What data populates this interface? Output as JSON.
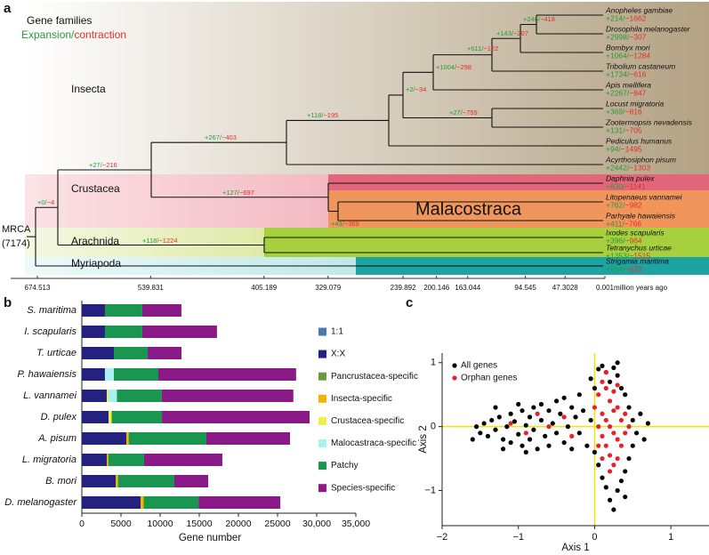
{
  "panel_labels": [
    "a",
    "b",
    "c"
  ],
  "tree": {
    "header": "Gene families",
    "expansion": "Expansion/",
    "contraction": "contraction",
    "clades": [
      {
        "name": "Insecta",
        "color": "#8b5a2b"
      },
      {
        "name": "Crustacea",
        "color": "#d0303a"
      },
      {
        "name": "Arachnida",
        "color": "#e8961e"
      },
      {
        "name": "Myriapoda",
        "color": "#2a3a9a"
      }
    ],
    "root": "MRCA",
    "root_count": "(7174)",
    "highlight": "Malacostraca",
    "gain_color": "#2a9a3a",
    "loss_color": "#e0302a",
    "leaves": [
      {
        "name": "Anopheles gambiae",
        "gain": "+214/",
        "loss": "−1662"
      },
      {
        "name": "Drosophila melanogaster",
        "gain": "+2998/",
        "loss": "−307"
      },
      {
        "name": "Bombyx mori",
        "gain": "+1064/",
        "loss": "−1284"
      },
      {
        "name": "Tribolium castaneum",
        "gain": "+1734/",
        "loss": "−616"
      },
      {
        "name": "Apis mellifera",
        "gain": "+2267/",
        "loss": "−847"
      },
      {
        "name": "Locust migratoria",
        "gain": "+369/",
        "loss": "−816"
      },
      {
        "name": "Zootermopsis nevadensis",
        "gain": "+131/",
        "loss": "−705"
      },
      {
        "name": "Pediculus humanus",
        "gain": "+94/",
        "loss": "−1495"
      },
      {
        "name": "Acyrthosiphon pisum",
        "gain": "+2442/",
        "loss": "−1303"
      },
      {
        "name": "Daphnia pulex",
        "gain": "+630/",
        "loss": "−1141"
      },
      {
        "name": "Litopenaeus vannamei",
        "gain": "+762/",
        "loss": "−982"
      },
      {
        "name": "Parhyale hawaiensis",
        "gain": "+411/",
        "loss": "−766"
      },
      {
        "name": "Ixodes scapularis",
        "gain": "+396/",
        "loss": "−964"
      },
      {
        "name": "Tetranychus urticae",
        "gain": "+1353/",
        "loss": "−1515"
      },
      {
        "name": "Strigamia maritima",
        "gain": "+664/",
        "loss": "−523"
      }
    ],
    "branches": [
      {
        "gain": "+246/",
        "loss": "−418"
      },
      {
        "gain": "+143/",
        "loss": "−207"
      },
      {
        "gain": "+611/",
        "loss": "−122"
      },
      {
        "gain": "+1004/",
        "loss": "−298"
      },
      {
        "gain": "+2/",
        "loss": "−34"
      },
      {
        "gain": "+27/",
        "loss": "−759"
      },
      {
        "gain": "+118/",
        "loss": "−195"
      },
      {
        "gain": "+267/",
        "loss": "−403"
      },
      {
        "gain": "+27/",
        "loss": "−216"
      },
      {
        "gain": "+127/",
        "loss": "−697"
      },
      {
        "gain": "+43/",
        "loss": "−369"
      },
      {
        "gain": "+118/",
        "loss": "−1224"
      },
      {
        "gain": "+0/",
        "loss": "−4"
      }
    ],
    "time_axis": {
      "xlim": [
        674.513,
        0.001
      ],
      "ticks": [
        674.513,
        539.831,
        405.189,
        329.079,
        239.892,
        200.146,
        163.044,
        94.545,
        47.3028,
        0.001
      ],
      "label": "million years ago"
    }
  },
  "chart_data": [
    {
      "type": "bar",
      "orientation": "horizontal",
      "stacked": true,
      "categories": [
        "S. maritima",
        "I. scapularis",
        "T. urticae",
        "P. hawaiensis",
        "L. vannamei",
        "D. pulex",
        "A. pisum",
        "L. migratoria",
        "B. mori",
        "D. melanogaster"
      ],
      "series": [
        {
          "name": "1:1",
          "color": "#4a78b0",
          "values": [
            0,
            0,
            0,
            0,
            0,
            0,
            0,
            0,
            0,
            0
          ]
        },
        {
          "name": "X:X",
          "color": "#23237f",
          "values": [
            2950,
            2950,
            4090,
            2950,
            3180,
            3410,
            5680,
            3180,
            4320,
            7500
          ]
        },
        {
          "name": "Pancrustacea-specific",
          "color": "#6a9a3a",
          "values": [
            0,
            0,
            0,
            0,
            0,
            0,
            0,
            0,
            0,
            0
          ]
        },
        {
          "name": "Insecta-specific",
          "color": "#f2b400",
          "values": [
            0,
            0,
            0,
            0,
            0,
            0,
            300,
            200,
            300,
            400
          ]
        },
        {
          "name": "Crustacea-specific",
          "color": "#f2ee48",
          "values": [
            0,
            0,
            0,
            0,
            200,
            400,
            0,
            0,
            0,
            0
          ]
        },
        {
          "name": "Malocastraca-specific",
          "color": "#a8f2f2",
          "values": [
            0,
            0,
            0,
            1140,
            1100,
            0,
            0,
            0,
            0,
            0
          ]
        },
        {
          "name": "Patchy",
          "color": "#1a9650",
          "values": [
            4770,
            4770,
            4320,
            5680,
            5740,
            6420,
            9930,
            4570,
            7200,
            7000
          ]
        },
        {
          "name": "Species-specific",
          "color": "#8b1a89",
          "values": [
            5000,
            9540,
            4320,
            17600,
            16800,
            18860,
            10680,
            10000,
            4320,
            10450
          ]
        }
      ],
      "xlim": [
        0,
        35000
      ],
      "xticks": [
        0,
        5000,
        10000,
        15000,
        20000,
        25000,
        {
          "value": 30000,
          "label": "30,000"
        },
        {
          "value": 35000,
          "label": "35,000"
        }
      ],
      "xlabel": "Gene number"
    },
    {
      "type": "scatter",
      "series": [
        {
          "name": "All genes",
          "color": "#000000",
          "x": [
            -1.55,
            -1.5,
            -1.45,
            -1.4,
            -1.35,
            -1.3,
            -1.25,
            -1.2,
            -1.15,
            -1.1,
            -1.1,
            -1.05,
            -1.0,
            -0.95,
            -0.95,
            -0.9,
            -0.85,
            -0.85,
            -0.8,
            -0.8,
            -0.75,
            -0.7,
            -0.7,
            -0.65,
            -0.6,
            -0.6,
            -0.55,
            -0.5,
            -0.5,
            -0.45,
            -0.4,
            -0.4,
            -0.35,
            -0.3,
            -0.3,
            -0.25,
            -0.2,
            -0.2,
            -0.15,
            -0.1,
            -0.05,
            -1.2,
            -1.0,
            -0.9,
            -1.3,
            -1.6,
            0.0,
            0.05,
            0.1,
            0.15,
            0.2,
            0.25,
            0.3,
            0.35,
            0.4,
            0.45,
            0.5,
            0.55,
            0.5,
            0.45,
            0.4,
            0.35,
            0.3,
            0.2,
            0.15,
            0.1,
            0.05,
            0.0,
            0.6,
            0.65,
            0.7,
            0.3,
            -0.05,
            0.25,
            0.4
          ],
          "values": [
            0.0,
            -0.1,
            0.05,
            -0.15,
            0.1,
            -0.05,
            0.15,
            -0.2,
            0.0,
            0.2,
            -0.25,
            0.08,
            -0.12,
            0.25,
            -0.3,
            0.02,
            0.15,
            -0.2,
            0.3,
            -0.05,
            -0.35,
            0.1,
            0.35,
            -0.15,
            0.25,
            -0.3,
            0.05,
            0.4,
            -0.1,
            0.2,
            -0.25,
            0.45,
            0.0,
            0.3,
            -0.35,
            0.15,
            -0.1,
            0.5,
            0.25,
            -0.3,
            0.1,
            -0.35,
            0.35,
            -0.4,
            0.3,
            -0.2,
            0.6,
            0.9,
            0.95,
            0.85,
            0.7,
            0.92,
            0.8,
            0.6,
            0.5,
            0.3,
            0.1,
            -0.1,
            -0.3,
            -0.5,
            -0.7,
            -0.85,
            -1.0,
            -1.15,
            -0.95,
            -0.8,
            -0.6,
            -0.4,
            0.2,
            -0.2,
            0.05,
            1.0,
            0.75,
            -1.3,
            -1.1
          ]
        },
        {
          "name": "Orphan genes",
          "color": "#e8202a",
          "x": [
            0.05,
            0.1,
            0.15,
            0.2,
            0.25,
            0.3,
            0.1,
            0.15,
            0.2,
            0.25,
            0.3,
            0.1,
            0.15,
            0.2,
            0.25,
            0.3,
            0.35,
            0.35,
            0.05,
            0.1,
            0.2,
            0.15,
            0.25,
            0.4,
            0.4,
            0.3,
            0.0,
            0.05,
            -0.6,
            -0.9,
            -0.4,
            -1.1,
            -0.3,
            -0.75,
            0.45
          ],
          "values": [
            0.5,
            0.7,
            0.6,
            0.4,
            0.55,
            0.3,
            0.2,
            0.1,
            0.0,
            -0.1,
            -0.2,
            -0.15,
            -0.3,
            -0.45,
            -0.6,
            -0.5,
            -0.3,
            0.1,
            0.0,
            -0.5,
            -0.7,
            0.85,
            0.25,
            0.2,
            -0.1,
            0.65,
            0.3,
            -0.3,
            0.0,
            -0.1,
            0.15,
            0.05,
            -0.15,
            0.2,
            0.0
          ]
        }
      ],
      "xlim": [
        -2,
        1.5
      ],
      "ylim": [
        -1.55,
        1.15
      ],
      "xticks": [
        {
          "value": -2,
          "label": "−2"
        },
        {
          "value": -1,
          "label": "−1"
        },
        0,
        1
      ],
      "yticks": [
        {
          "value": -1,
          "label": "−1"
        },
        0,
        1
      ],
      "xlabel": "Axis 1",
      "ylabel": "Axis 2",
      "legend": "upper left",
      "reference_lines": {
        "x": 0,
        "y": 0,
        "color": "#f2e400"
      }
    }
  ]
}
